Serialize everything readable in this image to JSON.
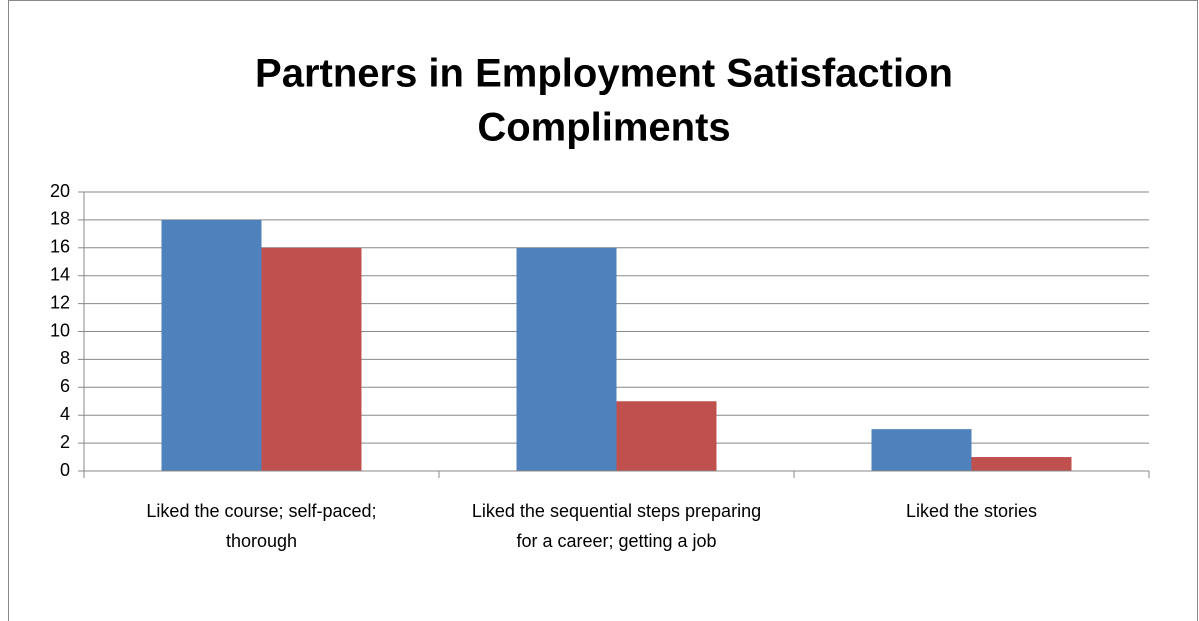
{
  "chart_data": {
    "type": "bar",
    "title": [
      "Partners in Employment Satisfaction",
      "Compliments"
    ],
    "categories": [
      "Liked the course; self-paced; thorough",
      "Liked the sequential steps preparing for a career; getting a job",
      "Liked the stories"
    ],
    "series": [
      {
        "color": "#4f81bd",
        "values": [
          18,
          16,
          3
        ]
      },
      {
        "color": "#c0504d",
        "values": [
          16,
          5,
          1
        ]
      }
    ],
    "ylim": [
      0,
      20
    ],
    "yticks": [
      0,
      2,
      4,
      6,
      8,
      10,
      12,
      14,
      16,
      18,
      20
    ],
    "grid": true
  }
}
